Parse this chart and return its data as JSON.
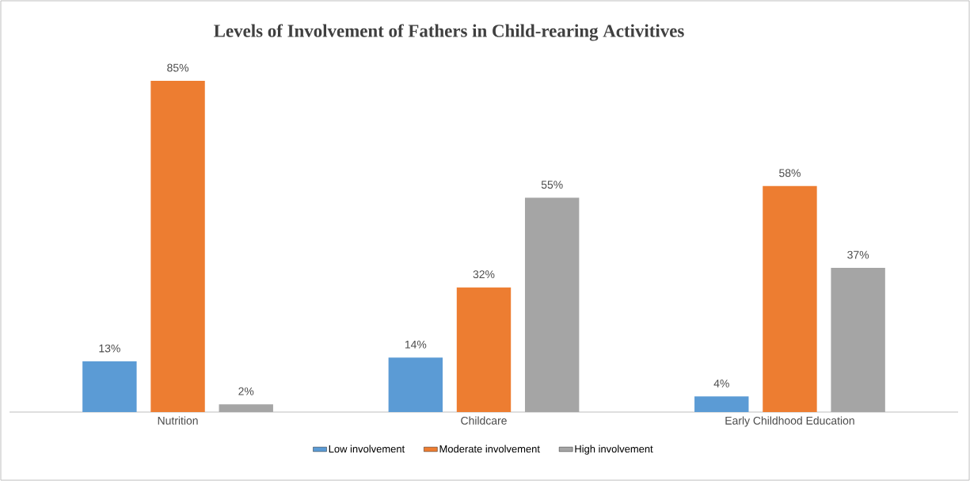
{
  "chart_data": {
    "type": "bar",
    "title": "Levels of Involvement of Fathers in Child-rearing Activitives",
    "categories": [
      "Nutrition",
      "Childcare",
      "Early Childhood Education"
    ],
    "series": [
      {
        "name": "Low involvement",
        "color": "#5b9bd5",
        "values": [
          13,
          14,
          4
        ],
        "value_labels": [
          "13%",
          "14%",
          "4%"
        ]
      },
      {
        "name": "Moderate involvement",
        "color": "#ed7d31",
        "values": [
          85,
          32,
          58
        ],
        "value_labels": [
          "85%",
          "32%",
          "58%"
        ]
      },
      {
        "name": "High involvement",
        "color": "#a5a5a5",
        "values": [
          2,
          55,
          37
        ],
        "value_labels": [
          "2%",
          "55%",
          "37%"
        ]
      }
    ],
    "legend": "bottom"
  }
}
